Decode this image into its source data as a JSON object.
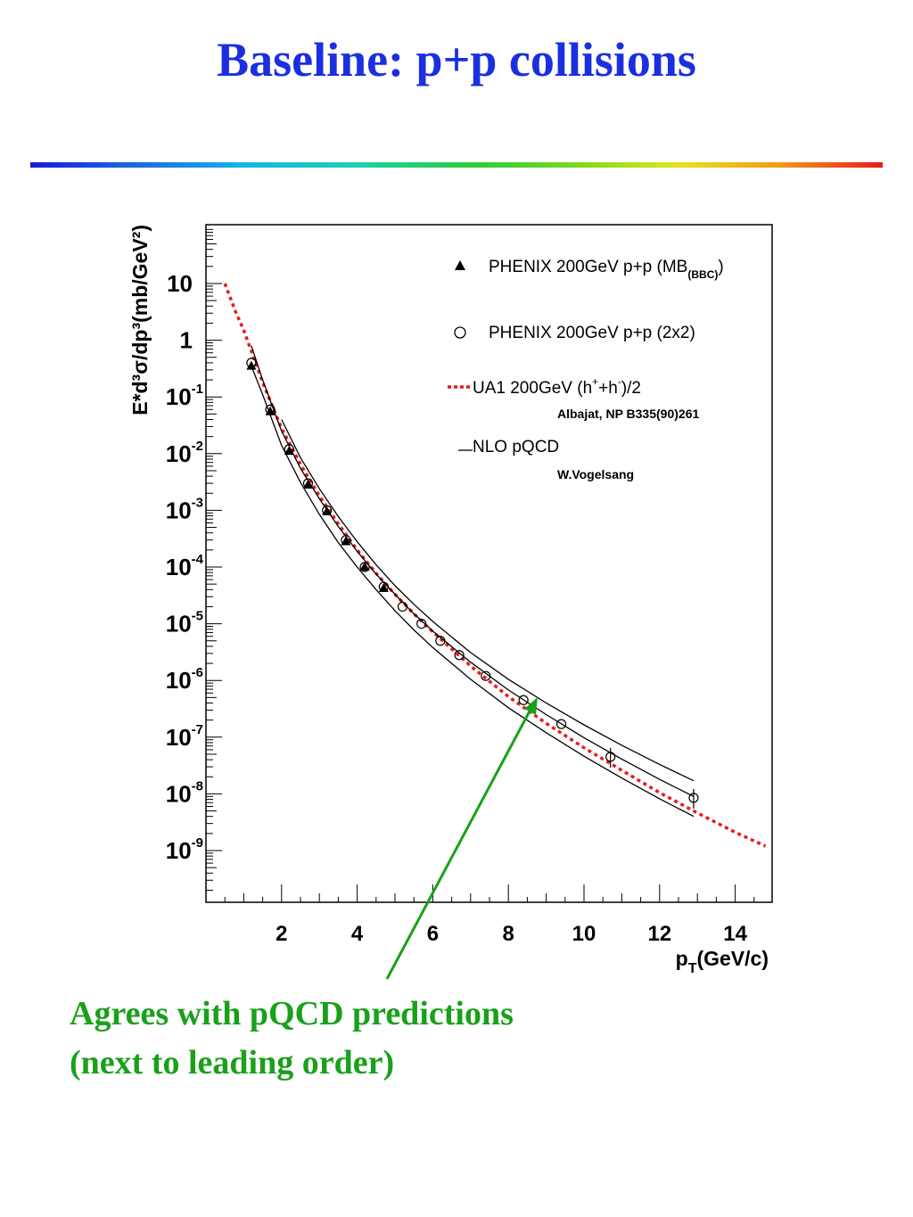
{
  "slide": {
    "title": "Baseline: p+p collisions",
    "note_line1": "Agrees with pQCD predictions",
    "note_line2": "(next to leading order)",
    "title_color": "#1a2fe0",
    "note_color": "#1aa01a"
  },
  "chart_data": {
    "type": "scatter",
    "xlabel": "p",
    "xlabel_sub": "T",
    "xlabel_unit": "(GeV/c)",
    "ylabel": "E*d³σ/dp³(mb/GeV²)",
    "xlim": [
      0,
      15
    ],
    "ylim": [
      1e-10,
      100
    ],
    "yscale": "log",
    "x_ticks": [
      "2",
      "4",
      "6",
      "8",
      "10",
      "12",
      "14"
    ],
    "y_ticks": [
      {
        "base": "10",
        "exp": "",
        "value": 10
      },
      {
        "base": "1",
        "exp": "",
        "value": 1
      },
      {
        "base": "10",
        "exp": "-1",
        "value": 0.1
      },
      {
        "base": "10",
        "exp": "-2",
        "value": 0.01
      },
      {
        "base": "10",
        "exp": "-3",
        "value": 0.001
      },
      {
        "base": "10",
        "exp": "-4",
        "value": 0.0001
      },
      {
        "base": "10",
        "exp": "-5",
        "value": 1e-05
      },
      {
        "base": "10",
        "exp": "-6",
        "value": 1e-06
      },
      {
        "base": "10",
        "exp": "-7",
        "value": 1e-07
      },
      {
        "base": "10",
        "exp": "-8",
        "value": 1e-08
      },
      {
        "base": "10",
        "exp": "-9",
        "value": 1e-09
      }
    ],
    "legend_position": "top-right",
    "legend": [
      {
        "marker": "triangle",
        "text": "PHENIX 200GeV p+p (MB",
        "sub": "(BBC)",
        "tail": ")"
      },
      {
        "marker": "circle",
        "text": "PHENIX 200GeV p+p (2x2)"
      },
      {
        "marker": "dotted-red",
        "text": "UA1 200GeV (h",
        "sup1": "+",
        "mid": "+h",
        "sup2": "-",
        "tail": ")/2",
        "ref": "Albajat, NP B335(90)261"
      },
      {
        "marker": "line",
        "text": "NLO pQCD",
        "ref": "W.Vogelsang"
      }
    ],
    "series": [
      {
        "name": "PHENIX 200GeV p+p (MB(BBC))",
        "marker": "triangle",
        "x": [
          1.2,
          1.7,
          2.2,
          2.7,
          3.2,
          3.7,
          4.2,
          4.7
        ],
        "y": [
          0.35,
          0.055,
          0.011,
          0.0028,
          0.00095,
          0.00028,
          0.0001,
          4.2e-05
        ]
      },
      {
        "name": "PHENIX 200GeV p+p (2x2)",
        "marker": "circle",
        "x": [
          1.2,
          1.7,
          2.2,
          2.7,
          3.2,
          3.7,
          4.2,
          4.7,
          5.2,
          5.7,
          6.2,
          6.7,
          7.4,
          8.4,
          9.4,
          10.7,
          12.9
        ],
        "y": [
          0.4,
          0.06,
          0.012,
          0.003,
          0.001,
          0.0003,
          0.0001,
          4.5e-05,
          2e-05,
          1e-05,
          5e-06,
          2.8e-06,
          1.2e-06,
          4.5e-07,
          1.7e-07,
          4.5e-08,
          8.5e-09
        ]
      },
      {
        "name": "UA1 200GeV (h+ + h-)/2",
        "style": "dotted",
        "color": "#e81a1a",
        "x": [
          0.5,
          0.8,
          1.0,
          1.5,
          2.0,
          2.5,
          3.0,
          3.5,
          4.0,
          4.5,
          5.0,
          5.5,
          6.0,
          7.0,
          8.0,
          9.0,
          10.0,
          11.0,
          12.0,
          13.0,
          14.0,
          14.8
        ],
        "y": [
          10,
          3,
          1.5,
          0.18,
          0.028,
          0.0065,
          0.0018,
          0.00058,
          0.0002,
          7.8e-05,
          3.3e-05,
          1.5e-05,
          7.2e-06,
          1.8e-06,
          5.2e-07,
          1.75e-07,
          6.5e-08,
          2.6e-08,
          1.05e-08,
          4.6e-09,
          2.1e-09,
          1.2e-09
        ]
      },
      {
        "name": "NLO pQCD upper",
        "style": "solid",
        "x": [
          2.0,
          2.5,
          3.0,
          3.5,
          4.0,
          4.5,
          5.0,
          5.5,
          6.0,
          7.0,
          8.0,
          9.0,
          10.0,
          11.0,
          12.0,
          12.9
        ],
        "y": [
          0.04,
          0.0085,
          0.0024,
          0.00078,
          0.00028,
          0.00011,
          4.7e-05,
          2.2e-05,
          1.1e-05,
          3.1e-06,
          1.05e-06,
          4e-07,
          1.65e-07,
          7.2e-08,
          3.3e-08,
          1.7e-08
        ]
      },
      {
        "name": "NLO pQCD central",
        "style": "solid",
        "x": [
          1.2,
          1.5,
          2.0,
          2.5,
          3.0,
          3.5,
          4.0,
          4.5,
          5.0,
          5.5,
          6.0,
          7.0,
          8.0,
          9.0,
          10.0,
          11.0,
          12.0,
          12.9
        ],
        "y": [
          0.8,
          0.2,
          0.025,
          0.0055,
          0.0016,
          0.00052,
          0.00019,
          7.5e-05,
          3.3e-05,
          1.5e-05,
          7.4e-06,
          2.1e-06,
          6.8e-07,
          2.5e-07,
          9.8e-08,
          4.1e-08,
          1.8e-08,
          9e-09
        ]
      },
      {
        "name": "NLO pQCD lower",
        "style": "solid",
        "x": [
          1.2,
          1.5,
          2.0,
          2.5,
          3.0,
          3.5,
          4.0,
          4.5,
          5.0,
          5.5,
          6.0,
          7.0,
          8.0,
          9.0,
          10.0,
          11.0,
          12.0,
          12.9
        ],
        "y": [
          0.35,
          0.11,
          0.014,
          0.0031,
          0.00085,
          0.00027,
          0.0001,
          4e-05,
          1.7e-05,
          7.8e-06,
          3.8e-06,
          1.05e-06,
          3.3e-07,
          1.2e-07,
          4.6e-08,
          1.9e-08,
          8.2e-09,
          4e-09
        ]
      }
    ],
    "annotation_arrow": {
      "to": [
        8.9,
        3.5e-07
      ],
      "color": "#1aa01a"
    }
  }
}
